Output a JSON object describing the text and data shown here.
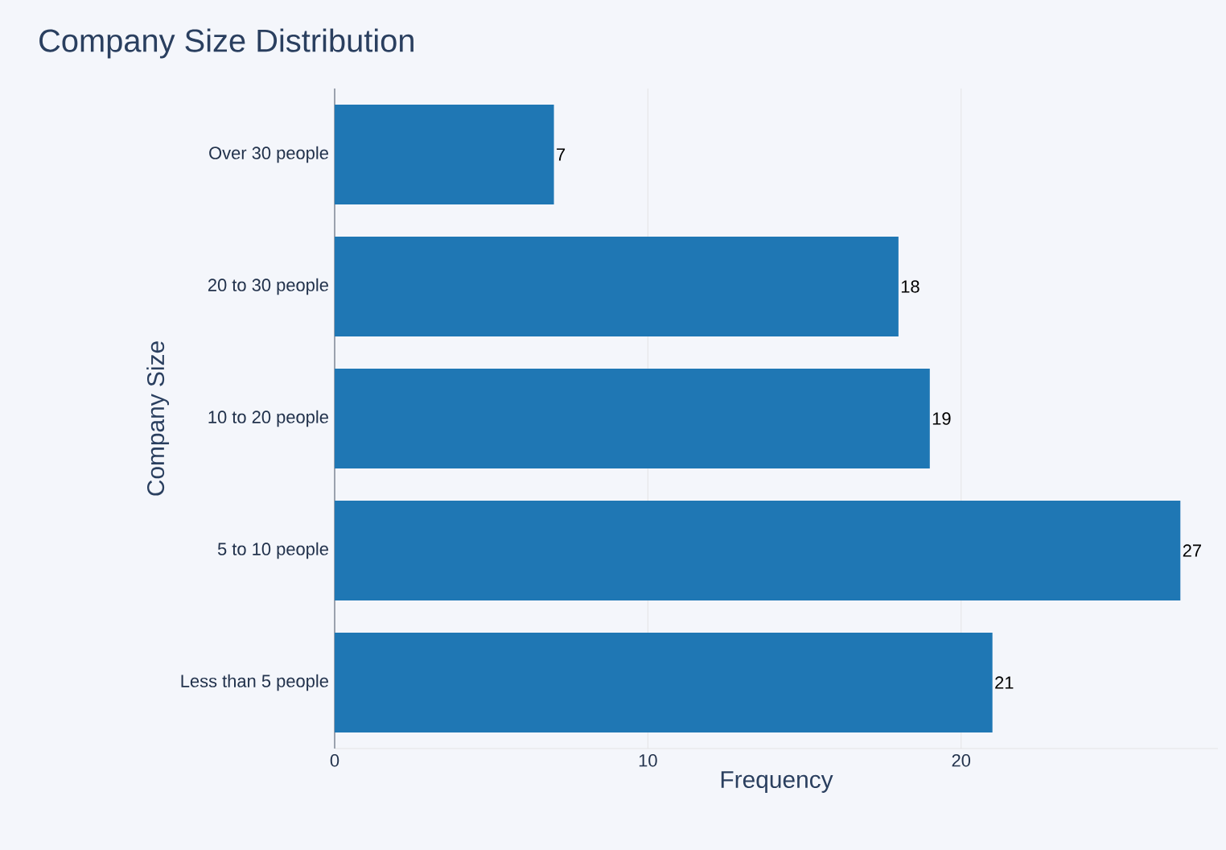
{
  "chart_data": {
    "type": "bar",
    "orientation": "horizontal",
    "title": "Company Size Distribution",
    "xlabel": "Frequency",
    "ylabel": "Company Size",
    "categories": [
      "Over 30 people",
      "20 to 30 people",
      "10 to 20 people",
      "5 to 10 people",
      "Less than 5 people"
    ],
    "values": [
      7,
      18,
      19,
      27,
      21
    ],
    "color": "#1f77b4",
    "xlim": [
      0,
      28.2
    ],
    "xticks": [
      0,
      10,
      20
    ],
    "grid": "x",
    "data_labels": true
  }
}
